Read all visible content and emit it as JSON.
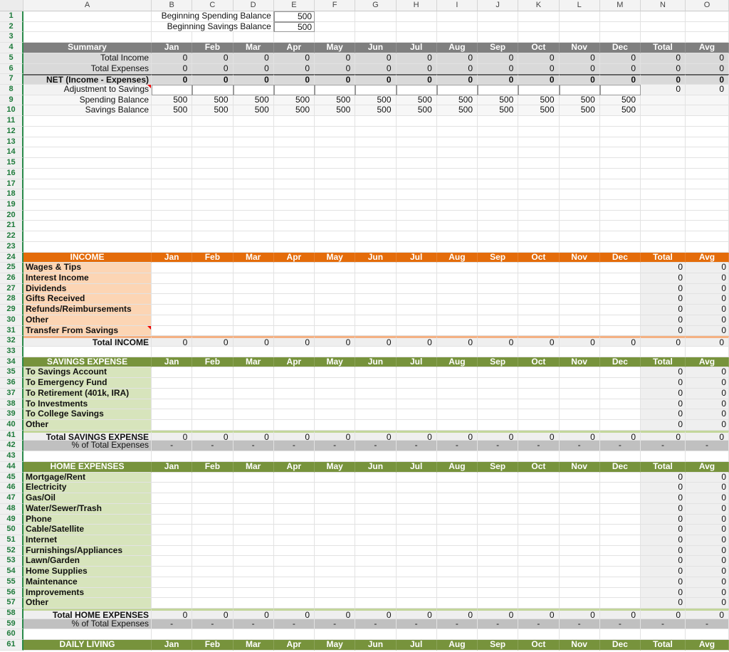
{
  "columns": [
    "A",
    "B",
    "C",
    "D",
    "E",
    "F",
    "G",
    "H",
    "I",
    "J",
    "K",
    "L",
    "M",
    "N",
    "O"
  ],
  "header_cols": [
    "Jan",
    "Feb",
    "Mar",
    "Apr",
    "May",
    "Jun",
    "Jul",
    "Aug",
    "Sep",
    "Oct",
    "Nov",
    "Dec",
    "Total",
    "Avg"
  ],
  "colors": {
    "summary_header": "#7f7f7f",
    "summary_rows": "#d9d9d9",
    "income_header": "#e46c0a",
    "income_label": "#fcd5b4",
    "income_line": "#f4b183",
    "expense_header": "#77933c",
    "expense_label": "#d7e4bc",
    "expense_line": "#c3d69b",
    "total_row": "#efefef",
    "total_col": "#efefef",
    "pct_row": "#c0c0c0"
  },
  "rows": [
    {
      "row": 1,
      "kind": "balance",
      "label": "Beginning Spending Balance",
      "value": "500"
    },
    {
      "row": 2,
      "kind": "balance",
      "label": "Beginning Savings Balance",
      "value": "500"
    },
    {
      "row": 3,
      "kind": "blank"
    },
    {
      "row": 4,
      "kind": "header",
      "label": "Summary",
      "color": "summary_header"
    },
    {
      "row": 5,
      "kind": "summary",
      "label": "Total Income",
      "values": [
        "0",
        "0",
        "0",
        "0",
        "0",
        "0",
        "0",
        "0",
        "0",
        "0",
        "0",
        "0",
        "0",
        "0"
      ]
    },
    {
      "row": 6,
      "kind": "summary",
      "label": "Total Expenses",
      "values": [
        "0",
        "0",
        "0",
        "0",
        "0",
        "0",
        "0",
        "0",
        "0",
        "0",
        "0",
        "0",
        "0",
        "0"
      ]
    },
    {
      "row": 7,
      "kind": "summary",
      "bold": true,
      "label": "NET (Income - Expenses)",
      "values": [
        "0",
        "0",
        "0",
        "0",
        "0",
        "0",
        "0",
        "0",
        "0",
        "0",
        "0",
        "0",
        "0",
        "0"
      ]
    },
    {
      "row": 8,
      "kind": "adjust",
      "label": "Adjustment to Savings",
      "values": [
        "",
        "",
        "",
        "",
        "",
        "",
        "",
        "",
        "",
        "",
        "",
        "",
        "0",
        "0"
      ]
    },
    {
      "row": 9,
      "kind": "balrow",
      "label": "Spending Balance",
      "values": [
        "500",
        "500",
        "500",
        "500",
        "500",
        "500",
        "500",
        "500",
        "500",
        "500",
        "500",
        "500",
        "",
        ""
      ]
    },
    {
      "row": 10,
      "kind": "balrow",
      "label": "Savings Balance",
      "values": [
        "500",
        "500",
        "500",
        "500",
        "500",
        "500",
        "500",
        "500",
        "500",
        "500",
        "500",
        "500",
        "",
        ""
      ]
    },
    {
      "row": 11,
      "kind": "blank"
    },
    {
      "row": 12,
      "kind": "blank"
    },
    {
      "row": 13,
      "kind": "blank"
    },
    {
      "row": 14,
      "kind": "blank"
    },
    {
      "row": 15,
      "kind": "blank"
    },
    {
      "row": 16,
      "kind": "blank"
    },
    {
      "row": 17,
      "kind": "blank"
    },
    {
      "row": 18,
      "kind": "blank"
    },
    {
      "row": 19,
      "kind": "blank"
    },
    {
      "row": 20,
      "kind": "blank"
    },
    {
      "row": 21,
      "kind": "blank"
    },
    {
      "row": 22,
      "kind": "blank"
    },
    {
      "row": 23,
      "kind": "blank"
    },
    {
      "row": 24,
      "kind": "header",
      "label": "INCOME",
      "color": "income_header"
    },
    {
      "row": 25,
      "kind": "item",
      "sec": "income",
      "label": "Wages & Tips"
    },
    {
      "row": 26,
      "kind": "item",
      "sec": "income",
      "label": "Interest Income"
    },
    {
      "row": 27,
      "kind": "item",
      "sec": "income",
      "label": "Dividends"
    },
    {
      "row": 28,
      "kind": "item",
      "sec": "income",
      "label": "Gifts Received"
    },
    {
      "row": 29,
      "kind": "item",
      "sec": "income",
      "label": "Refunds/Reimbursements"
    },
    {
      "row": 30,
      "kind": "item",
      "sec": "income",
      "label": "Other"
    },
    {
      "row": 31,
      "kind": "item",
      "sec": "income",
      "label": "Transfer From Savings",
      "note": true
    },
    {
      "row": 32,
      "kind": "total",
      "sec": "income",
      "label": "Total INCOME",
      "values": [
        "0",
        "0",
        "0",
        "0",
        "0",
        "0",
        "0",
        "0",
        "0",
        "0",
        "0",
        "0",
        "0",
        "0"
      ]
    },
    {
      "row": 33,
      "kind": "blank"
    },
    {
      "row": 34,
      "kind": "header",
      "label": "SAVINGS EXPENSE",
      "color": "expense_header"
    },
    {
      "row": 35,
      "kind": "item",
      "sec": "expense",
      "label": "To Savings Account"
    },
    {
      "row": 36,
      "kind": "item",
      "sec": "expense",
      "label": "To Emergency Fund"
    },
    {
      "row": 37,
      "kind": "item",
      "sec": "expense",
      "label": "To Retirement (401k, IRA)"
    },
    {
      "row": 38,
      "kind": "item",
      "sec": "expense",
      "label": "To Investments"
    },
    {
      "row": 39,
      "kind": "item",
      "sec": "expense",
      "label": "To College Savings"
    },
    {
      "row": 40,
      "kind": "item",
      "sec": "expense",
      "label": "Other"
    },
    {
      "row": 41,
      "kind": "total",
      "sec": "expense",
      "label": "Total SAVINGS EXPENSE",
      "values": [
        "0",
        "0",
        "0",
        "0",
        "0",
        "0",
        "0",
        "0",
        "0",
        "0",
        "0",
        "0",
        "0",
        "0"
      ]
    },
    {
      "row": 42,
      "kind": "pct",
      "label": "% of Total Expenses",
      "values": [
        "-",
        "-",
        "-",
        "-",
        "-",
        "-",
        "-",
        "-",
        "-",
        "-",
        "-",
        "-",
        "-",
        "-"
      ]
    },
    {
      "row": 43,
      "kind": "blank"
    },
    {
      "row": 44,
      "kind": "header",
      "label": "HOME EXPENSES",
      "color": "expense_header"
    },
    {
      "row": 45,
      "kind": "item",
      "sec": "expense",
      "label": "Mortgage/Rent"
    },
    {
      "row": 46,
      "kind": "item",
      "sec": "expense",
      "label": "Electricity"
    },
    {
      "row": 47,
      "kind": "item",
      "sec": "expense",
      "label": "Gas/Oil"
    },
    {
      "row": 48,
      "kind": "item",
      "sec": "expense",
      "label": "Water/Sewer/Trash"
    },
    {
      "row": 49,
      "kind": "item",
      "sec": "expense",
      "label": "Phone"
    },
    {
      "row": 50,
      "kind": "item",
      "sec": "expense",
      "label": "Cable/Satellite"
    },
    {
      "row": 51,
      "kind": "item",
      "sec": "expense",
      "label": "Internet"
    },
    {
      "row": 52,
      "kind": "item",
      "sec": "expense",
      "label": "Furnishings/Appliances"
    },
    {
      "row": 53,
      "kind": "item",
      "sec": "expense",
      "label": "Lawn/Garden"
    },
    {
      "row": 54,
      "kind": "item",
      "sec": "expense",
      "label": "Home Supplies"
    },
    {
      "row": 55,
      "kind": "item",
      "sec": "expense",
      "label": "Maintenance"
    },
    {
      "row": 56,
      "kind": "item",
      "sec": "expense",
      "label": "Improvements"
    },
    {
      "row": 57,
      "kind": "item",
      "sec": "expense",
      "label": "Other"
    },
    {
      "row": 58,
      "kind": "total",
      "sec": "expense",
      "label": "Total HOME EXPENSES",
      "values": [
        "0",
        "0",
        "0",
        "0",
        "0",
        "0",
        "0",
        "0",
        "0",
        "0",
        "0",
        "0",
        "0",
        "0"
      ]
    },
    {
      "row": 59,
      "kind": "pct",
      "label": "% of Total Expenses",
      "values": [
        "-",
        "-",
        "-",
        "-",
        "-",
        "-",
        "-",
        "-",
        "-",
        "-",
        "-",
        "-",
        "-",
        "-"
      ]
    },
    {
      "row": 60,
      "kind": "blank"
    },
    {
      "row": 61,
      "kind": "header",
      "label": "DAILY LIVING",
      "color": "expense_header"
    }
  ],
  "item_default_values": [
    "",
    "",
    "",
    "",
    "",
    "",
    "",
    "",
    "",
    "",
    "",
    "",
    "0",
    "0"
  ]
}
